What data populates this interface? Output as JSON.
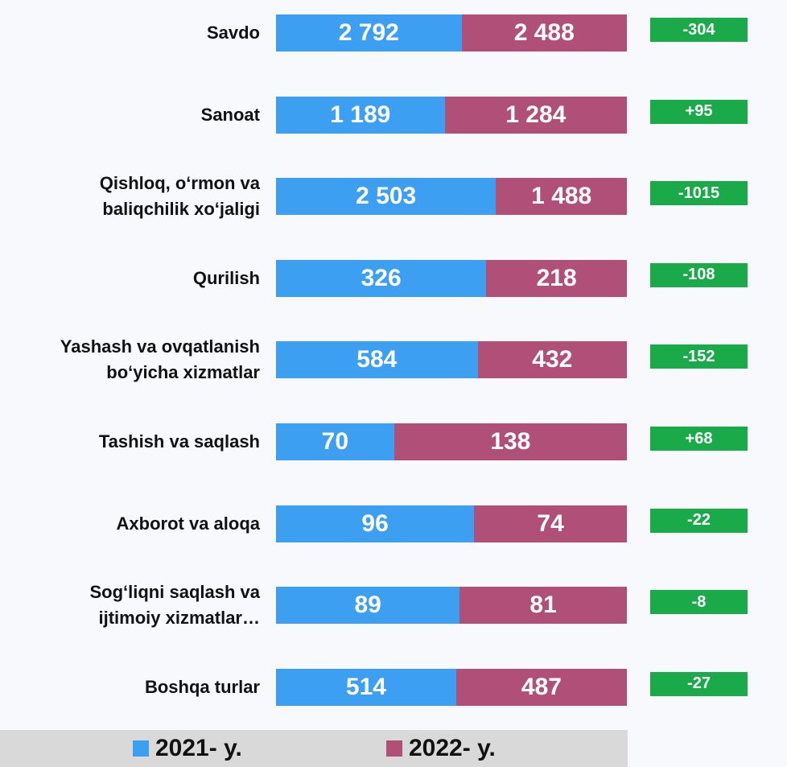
{
  "chart_data": {
    "type": "bar",
    "orientation": "horizontal",
    "stacking": "percent",
    "categories": [
      "Savdo",
      "Sanoat",
      "Qishloq, o‘rmon va\nbaliqchilik  xo‘jaligi",
      "Qurilish",
      "Yashash va ovqatlanish\nbo‘yicha xizmatlar",
      "Tashish va saqlash",
      "Axborot va aloqa",
      "Sog‘liqni saqlash va\nijtimoiy xizmatlar…",
      "Boshqa turlar"
    ],
    "series": [
      {
        "name": "2021- y.",
        "color": "#3d9ff2",
        "values": [
          2792,
          1189,
          2503,
          326,
          584,
          70,
          96,
          89,
          514
        ],
        "value_labels": [
          "2 792",
          "1 189",
          "2 503",
          "326",
          "584",
          "70",
          "96",
          "89",
          "514"
        ]
      },
      {
        "name": "2022- y.",
        "color": "#b04f78",
        "values": [
          2488,
          1284,
          1488,
          218,
          432,
          138,
          74,
          81,
          487
        ],
        "value_labels": [
          "2 488",
          "1 284",
          "1 488",
          "218",
          "432",
          "138",
          "74",
          "81",
          "487"
        ]
      }
    ],
    "differences": {
      "color": "#1aaa4a",
      "values": [
        -304,
        95,
        -1015,
        -108,
        -152,
        68,
        -22,
        -8,
        -27
      ],
      "value_labels": [
        "-304",
        "+95",
        "-1015",
        "-108",
        "-152",
        "+68",
        "-22",
        "-8",
        "-27"
      ]
    },
    "legend": "bottom"
  }
}
